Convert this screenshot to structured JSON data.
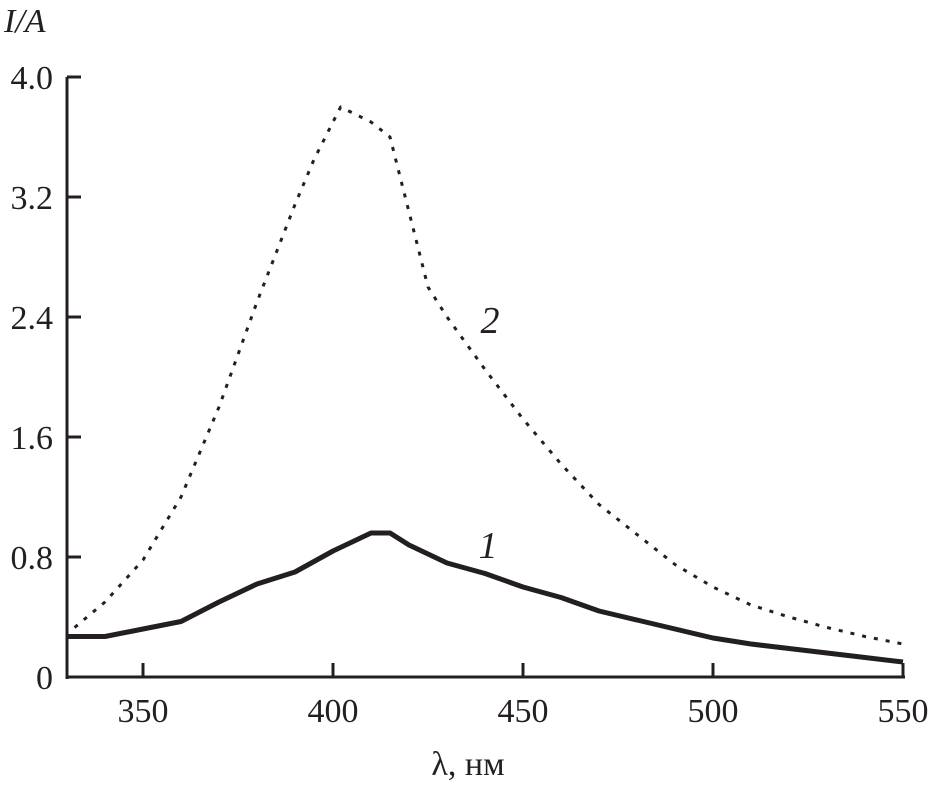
{
  "chart_data": {
    "type": "line",
    "title": "",
    "xlabel": "λ, нм",
    "ylabel": "I/A",
    "xlim": [
      330,
      550
    ],
    "ylim": [
      0,
      4.0
    ],
    "xticks": [
      350,
      400,
      450,
      500,
      550
    ],
    "xtick_labels": [
      "350",
      "400",
      "450",
      "500",
      "550"
    ],
    "yticks": [
      0,
      0.8,
      1.6,
      2.4,
      3.2,
      4.0
    ],
    "ytick_labels": [
      "0",
      "0.8",
      "1.6",
      "2.4",
      "3.2",
      "4.0"
    ],
    "grid": false,
    "series": [
      {
        "name": "1",
        "style": "solid",
        "color": "#231f20",
        "x": [
          330,
          340,
          350,
          360,
          370,
          380,
          390,
          400,
          410,
          415,
          420,
          430,
          440,
          450,
          460,
          470,
          480,
          490,
          500,
          510,
          520,
          530,
          540,
          550
        ],
        "y": [
          0.27,
          0.27,
          0.32,
          0.37,
          0.5,
          0.62,
          0.7,
          0.84,
          0.96,
          0.96,
          0.88,
          0.76,
          0.69,
          0.6,
          0.53,
          0.44,
          0.38,
          0.32,
          0.26,
          0.22,
          0.19,
          0.16,
          0.13,
          0.1
        ]
      },
      {
        "name": "2",
        "style": "dotted",
        "color": "#231f20",
        "x": [
          332,
          340,
          350,
          360,
          370,
          380,
          390,
          395,
          402,
          410,
          415,
          420,
          425,
          430,
          440,
          450,
          460,
          470,
          480,
          490,
          500,
          510,
          520,
          530,
          540,
          550
        ],
        "y": [
          0.33,
          0.5,
          0.78,
          1.2,
          1.8,
          2.5,
          3.15,
          3.45,
          3.8,
          3.7,
          3.6,
          3.1,
          2.6,
          2.4,
          2.05,
          1.72,
          1.42,
          1.15,
          0.95,
          0.75,
          0.6,
          0.48,
          0.4,
          0.33,
          0.27,
          0.22
        ]
      }
    ]
  }
}
